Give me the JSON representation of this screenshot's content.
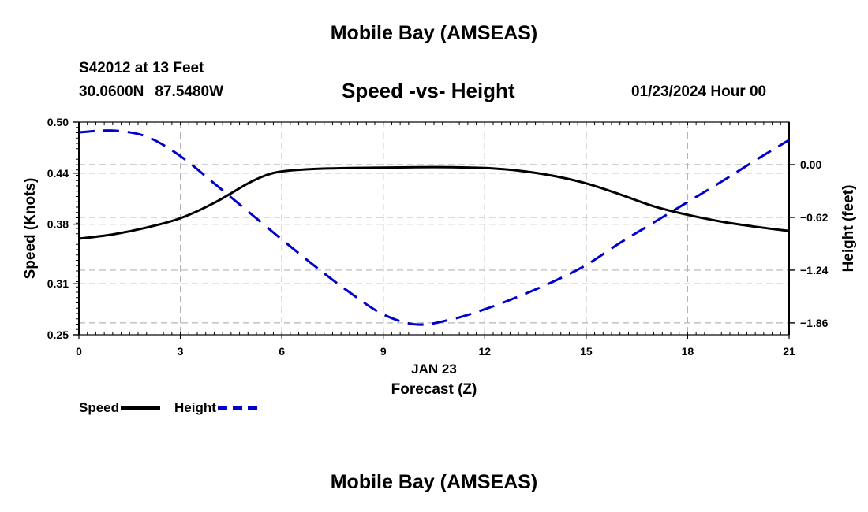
{
  "header": {
    "title": "Mobile Bay (AMSEAS)",
    "station": "S42012 at 13 Feet",
    "lat": "30.0600N",
    "lon": "87.5480W",
    "plot_title": "Speed -vs- Height",
    "date": "01/23/2024 Hour 00"
  },
  "footer": {
    "title": "Mobile Bay (AMSEAS)"
  },
  "legend": {
    "speed_label": "Speed",
    "height_label": "Height"
  },
  "colors": {
    "speed": "#000000",
    "height": "#0000cc",
    "grid": "#b4b4b4"
  },
  "chart_data": {
    "type": "line",
    "xlabel": "Forecast (Z)",
    "xlabel_date": "JAN 23",
    "ylabel_left": "Speed (Knots)",
    "ylabel_right": "Height (feet)",
    "xlim": [
      0,
      21
    ],
    "ylim_left": [
      0.25,
      0.5
    ],
    "ylim_right": [
      -2.0,
      0.5
    ],
    "x_ticks": [
      "0",
      "3",
      "6",
      "9",
      "12",
      "15",
      "18",
      "21"
    ],
    "y_left_ticks": [
      "0.50",
      "0.44",
      "0.38",
      "0.31",
      "0.25"
    ],
    "y_right_ticks": [
      "0.00",
      "-0.62",
      "-1.24",
      "-1.86"
    ],
    "grid": true,
    "legend_position": "bottom-left",
    "series": [
      {
        "name": "Speed",
        "x": [
          0,
          1,
          2,
          3,
          4,
          5,
          5.5,
          6,
          7,
          8,
          9,
          10,
          11,
          12,
          13,
          14,
          15,
          16,
          17,
          18,
          19,
          20,
          21
        ],
        "values": [
          0.363,
          0.368,
          0.376,
          0.387,
          0.405,
          0.428,
          0.437,
          0.442,
          0.445,
          0.446,
          0.4465,
          0.447,
          0.447,
          0.446,
          0.443,
          0.437,
          0.428,
          0.415,
          0.401,
          0.391,
          0.383,
          0.377,
          0.372
        ]
      },
      {
        "name": "Height",
        "x": [
          0,
          1,
          2,
          3,
          4,
          5,
          6,
          7,
          8,
          9,
          10,
          11,
          12,
          13,
          14,
          15,
          16,
          17,
          18,
          19,
          20,
          21
        ],
        "values": [
          0.38,
          0.4,
          0.33,
          0.1,
          -0.22,
          -0.55,
          -0.88,
          -1.2,
          -1.5,
          -1.76,
          -1.88,
          -1.82,
          -1.7,
          -1.55,
          -1.38,
          -1.18,
          -0.92,
          -0.68,
          -0.44,
          -0.2,
          0.05,
          0.29
        ]
      }
    ]
  }
}
